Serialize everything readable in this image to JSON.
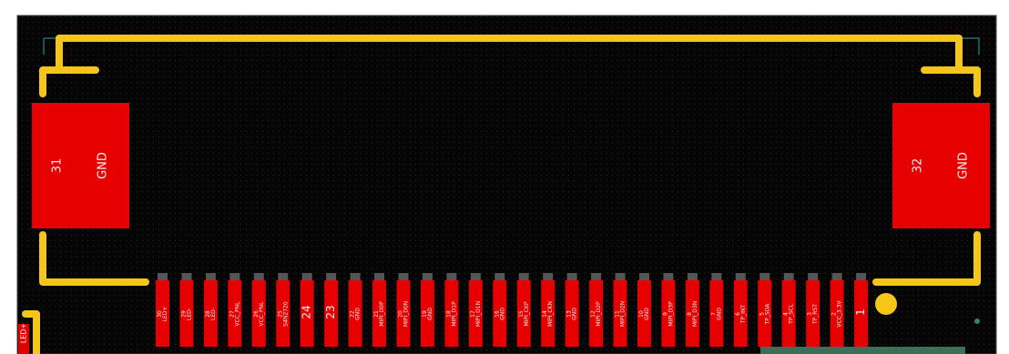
{
  "connector": {
    "mount_pads": [
      {
        "number": "31",
        "net": "GND"
      },
      {
        "number": "32",
        "net": "GND"
      }
    ],
    "pads": [
      {
        "number": "30",
        "net": "LED+"
      },
      {
        "number": "29",
        "net": "LED-"
      },
      {
        "number": "28",
        "net": "LED-"
      },
      {
        "number": "27",
        "net": "VCC_PNL"
      },
      {
        "number": "26",
        "net": "VCC_PNL"
      },
      {
        "number": "25",
        "net": "S4N2720"
      },
      {
        "number": "24"
      },
      {
        "number": "23"
      },
      {
        "number": "22",
        "net": "GND"
      },
      {
        "number": "21",
        "net": "MIPI_D0P"
      },
      {
        "number": "20",
        "net": "MIPI_D0N"
      },
      {
        "number": "19",
        "net": "GND"
      },
      {
        "number": "18",
        "net": "MIPI_D1P"
      },
      {
        "number": "17",
        "net": "MIPI_D1N"
      },
      {
        "number": "16",
        "net": "GND"
      },
      {
        "number": "15",
        "net": "MIPI_CKP"
      },
      {
        "number": "14",
        "net": "MIPI_CKN"
      },
      {
        "number": "13",
        "net": "GND"
      },
      {
        "number": "12",
        "net": "MIPI_D2P"
      },
      {
        "number": "11",
        "net": "MIPI_D2N"
      },
      {
        "number": "10",
        "net": "GND"
      },
      {
        "number": "9",
        "net": "MIPI_D3P"
      },
      {
        "number": "8",
        "net": "MIPI_D3N"
      },
      {
        "number": "7",
        "net": "GND"
      },
      {
        "number": "6",
        "net": "TP_INT"
      },
      {
        "number": "5",
        "net": "TP_SDA"
      },
      {
        "number": "4",
        "net": "TP_SCL"
      },
      {
        "number": "3",
        "net": "TP_RST"
      },
      {
        "number": "2",
        "net": "VCC_3.3V"
      },
      {
        "number": "1"
      }
    ]
  },
  "edge_label": "LED+"
}
